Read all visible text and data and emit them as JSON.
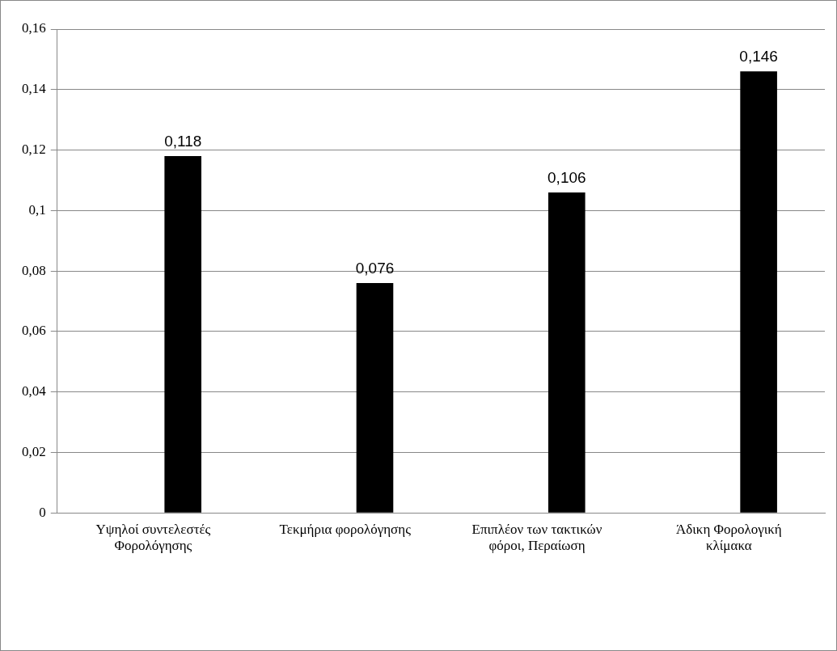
{
  "chart_data": {
    "type": "bar",
    "categories": [
      "Υψηλοί συντελεστές Φορολόγησης",
      "Τεκμήρια φορολόγησης",
      "Επιπλέον των τακτικών φόροι, Περαίωση",
      "Άδικη Φορολογική κλίμακα"
    ],
    "series": [
      {
        "color": "#000000",
        "values": [
          null,
          null,
          null,
          null
        ]
      },
      {
        "color": "#000000",
        "values": [
          0.118,
          0.076,
          0.106,
          0.146
        ],
        "value_labels": [
          "0,118",
          "0,076",
          "0,106",
          "0,146"
        ]
      }
    ],
    "ylim": [
      0,
      0.16
    ],
    "yticks": [
      0,
      {
        "value": 0.02,
        "label": "0,02"
      },
      {
        "value": 0.04,
        "label": "0,04"
      },
      {
        "value": 0.06,
        "label": "0,06"
      },
      {
        "value": 0.08,
        "label": "0,08"
      },
      {
        "value": 0.1,
        "label": "0,1"
      },
      {
        "value": 0.12,
        "label": "0,12"
      },
      {
        "value": 0.14,
        "label": "0,14"
      },
      {
        "value": 0.16,
        "label": "0,16"
      }
    ],
    "grid": "y",
    "legend": false
  }
}
